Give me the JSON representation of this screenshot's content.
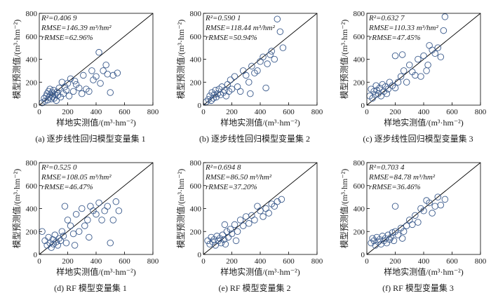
{
  "figure": {
    "marker_color": "#3a5a8c",
    "axis_color": "#000000"
  },
  "chart_data": [
    {
      "type": "scatter",
      "caption": "(a) 逐步线性回归模型变量集 1",
      "xlabel": "样地实测值/(m³·hm⁻²)",
      "ylabel": "模型预测值/(m³·hm⁻²)",
      "xlim": [
        0,
        800
      ],
      "ylim": [
        0,
        800
      ],
      "xticks": [
        0,
        200,
        400,
        600,
        800
      ],
      "yticks": [
        0,
        200,
        400,
        600,
        800
      ],
      "reference_line": "1:1",
      "stats": [
        "R²=0.406 9",
        "RMSE=146.39 m³/hm²",
        "rRMSE=62.96%"
      ],
      "points": [
        [
          20,
          20
        ],
        [
          35,
          60
        ],
        [
          40,
          35
        ],
        [
          50,
          80
        ],
        [
          55,
          100
        ],
        [
          60,
          45
        ],
        [
          65,
          120
        ],
        [
          70,
          70
        ],
        [
          75,
          140
        ],
        [
          80,
          90
        ],
        [
          85,
          55
        ],
        [
          90,
          110
        ],
        [
          95,
          75
        ],
        [
          100,
          130
        ],
        [
          105,
          60
        ],
        [
          110,
          95
        ],
        [
          120,
          40
        ],
        [
          125,
          115
        ],
        [
          130,
          85
        ],
        [
          140,
          150
        ],
        [
          150,
          70
        ],
        [
          160,
          200
        ],
        [
          170,
          100
        ],
        [
          180,
          160
        ],
        [
          190,
          130
        ],
        [
          200,
          190
        ],
        [
          210,
          80
        ],
        [
          220,
          230
        ],
        [
          240,
          120
        ],
        [
          250,
          210
        ],
        [
          260,
          180
        ],
        [
          280,
          150
        ],
        [
          300,
          100
        ],
        [
          310,
          260
        ],
        [
          330,
          140
        ],
        [
          350,
          120
        ],
        [
          370,
          300
        ],
        [
          380,
          220
        ],
        [
          400,
          250
        ],
        [
          420,
          460
        ],
        [
          430,
          190
        ],
        [
          450,
          300
        ],
        [
          470,
          350
        ],
        [
          480,
          270
        ],
        [
          500,
          110
        ],
        [
          520,
          260
        ],
        [
          550,
          280
        ]
      ]
    },
    {
      "type": "scatter",
      "caption": "(b) 逐步线性回归模型变量集 2",
      "xlabel": "样地实测值/(m³·hm⁻²)",
      "ylabel": "模型预测值/(m³·hm⁻²)",
      "xlim": [
        0,
        800
      ],
      "ylim": [
        0,
        800
      ],
      "xticks": [
        0,
        200,
        400,
        600,
        800
      ],
      "yticks": [
        0,
        200,
        400,
        600,
        800
      ],
      "reference_line": "1:1",
      "stats": [
        "R²=0.590 1",
        "RMSE=118.44 m³/hm²",
        "rRMSE=50.94%"
      ],
      "points": [
        [
          20,
          30
        ],
        [
          35,
          50
        ],
        [
          45,
          80
        ],
        [
          55,
          40
        ],
        [
          60,
          110
        ],
        [
          70,
          60
        ],
        [
          75,
          90
        ],
        [
          85,
          130
        ],
        [
          90,
          70
        ],
        [
          100,
          100
        ],
        [
          110,
          140
        ],
        [
          120,
          90
        ],
        [
          130,
          160
        ],
        [
          140,
          110
        ],
        [
          150,
          130
        ],
        [
          160,
          80
        ],
        [
          170,
          180
        ],
        [
          180,
          120
        ],
        [
          190,
          220
        ],
        [
          200,
          140
        ],
        [
          220,
          250
        ],
        [
          240,
          160
        ],
        [
          260,
          120
        ],
        [
          280,
          300
        ],
        [
          300,
          260
        ],
        [
          320,
          200
        ],
        [
          340,
          340
        ],
        [
          360,
          280
        ],
        [
          380,
          300
        ],
        [
          400,
          380
        ],
        [
          420,
          420
        ],
        [
          440,
          150
        ],
        [
          450,
          360
        ],
        [
          470,
          440
        ],
        [
          480,
          470
        ],
        [
          500,
          400
        ],
        [
          520,
          750
        ],
        [
          540,
          640
        ],
        [
          560,
          500
        ],
        [
          330,
          100
        ]
      ]
    },
    {
      "type": "scatter",
      "caption": "(c) 逐步线性回归模型变量集 3",
      "xlabel": "样地实测值/(m³·hm⁻²)",
      "ylabel": "模型预测值/(m³·hm⁻²)",
      "xlim": [
        0,
        800
      ],
      "ylim": [
        0,
        800
      ],
      "xticks": [
        0,
        200,
        400,
        600,
        800
      ],
      "yticks": [
        0,
        200,
        400,
        600,
        800
      ],
      "reference_line": "1:1",
      "stats": [
        "R²=0.632 7",
        "RMSE=110.33 m³/hm²",
        "rRMSE=47.45%"
      ],
      "points": [
        [
          20,
          80
        ],
        [
          30,
          140
        ],
        [
          40,
          60
        ],
        [
          50,
          120
        ],
        [
          60,
          90
        ],
        [
          65,
          170
        ],
        [
          70,
          130
        ],
        [
          80,
          100
        ],
        [
          90,
          150
        ],
        [
          100,
          80
        ],
        [
          110,
          180
        ],
        [
          120,
          120
        ],
        [
          130,
          160
        ],
        [
          140,
          100
        ],
        [
          150,
          140
        ],
        [
          160,
          200
        ],
        [
          180,
          170
        ],
        [
          200,
          150
        ],
        [
          220,
          200
        ],
        [
          240,
          250
        ],
        [
          260,
          300
        ],
        [
          280,
          200
        ],
        [
          300,
          350
        ],
        [
          320,
          290
        ],
        [
          340,
          260
        ],
        [
          360,
          400
        ],
        [
          380,
          250
        ],
        [
          400,
          430
        ],
        [
          420,
          300
        ],
        [
          440,
          520
        ],
        [
          460,
          480
        ],
        [
          480,
          450
        ],
        [
          500,
          500
        ],
        [
          520,
          420
        ],
        [
          540,
          650
        ],
        [
          550,
          770
        ],
        [
          250,
          440
        ],
        [
          200,
          430
        ],
        [
          430,
          350
        ]
      ]
    },
    {
      "type": "scatter",
      "caption": "(d) RF 模型变量集 1",
      "xlabel": "样地实测值/(m³·hm⁻²)",
      "ylabel": "模型预测值/(m³·hm⁻²)",
      "xlim": [
        0,
        800
      ],
      "ylim": [
        0,
        800
      ],
      "xticks": [
        0,
        200,
        400,
        600,
        800
      ],
      "yticks": [
        0,
        200,
        400,
        600,
        800
      ],
      "reference_line": "1:1",
      "stats": [
        "R²=0.525 0",
        "RMSE=108.05 m³/hm²",
        "rRMSE=46.47%"
      ],
      "points": [
        [
          20,
          200
        ],
        [
          40,
          120
        ],
        [
          55,
          80
        ],
        [
          65,
          150
        ],
        [
          75,
          100
        ],
        [
          85,
          60
        ],
        [
          95,
          130
        ],
        [
          100,
          90
        ],
        [
          110,
          170
        ],
        [
          120,
          110
        ],
        [
          130,
          80
        ],
        [
          140,
          140
        ],
        [
          150,
          120
        ],
        [
          160,
          200
        ],
        [
          170,
          160
        ],
        [
          180,
          420
        ],
        [
          190,
          100
        ],
        [
          200,
          300
        ],
        [
          220,
          250
        ],
        [
          240,
          180
        ],
        [
          260,
          350
        ],
        [
          280,
          200
        ],
        [
          300,
          400
        ],
        [
          320,
          250
        ],
        [
          340,
          300
        ],
        [
          360,
          420
        ],
        [
          380,
          380
        ],
        [
          400,
          350
        ],
        [
          420,
          450
        ],
        [
          440,
          300
        ],
        [
          460,
          380
        ],
        [
          480,
          420
        ],
        [
          500,
          100
        ],
        [
          520,
          300
        ],
        [
          540,
          460
        ],
        [
          560,
          380
        ],
        [
          250,
          80
        ],
        [
          350,
          150
        ]
      ]
    },
    {
      "type": "scatter",
      "caption": "(e) RF 模型变量集 2",
      "xlabel": "样地实测值/(m³·hm⁻²)",
      "ylabel": "模型预测值/(m³·hm⁻²)",
      "xlim": [
        0,
        800
      ],
      "ylim": [
        0,
        800
      ],
      "xticks": [
        0,
        200,
        400,
        600,
        800
      ],
      "yticks": [
        0,
        200,
        400,
        600,
        800
      ],
      "reference_line": "1:1",
      "stats": [
        "R²=0.694 8",
        "RMSE=86.50 m³/hm²",
        "rRMSE=37.20%"
      ],
      "points": [
        [
          30,
          120
        ],
        [
          45,
          90
        ],
        [
          55,
          150
        ],
        [
          65,
          110
        ],
        [
          75,
          130
        ],
        [
          85,
          80
        ],
        [
          95,
          160
        ],
        [
          105,
          120
        ],
        [
          115,
          140
        ],
        [
          125,
          100
        ],
        [
          135,
          170
        ],
        [
          145,
          130
        ],
        [
          155,
          90
        ],
        [
          165,
          200
        ],
        [
          175,
          150
        ],
        [
          190,
          220
        ],
        [
          200,
          180
        ],
        [
          220,
          260
        ],
        [
          240,
          200
        ],
        [
          260,
          300
        ],
        [
          280,
          250
        ],
        [
          300,
          330
        ],
        [
          320,
          270
        ],
        [
          340,
          340
        ],
        [
          360,
          300
        ],
        [
          380,
          420
        ],
        [
          400,
          380
        ],
        [
          420,
          330
        ],
        [
          440,
          400
        ],
        [
          460,
          360
        ],
        [
          480,
          440
        ],
        [
          500,
          420
        ],
        [
          520,
          460
        ],
        [
          550,
          480
        ],
        [
          230,
          120
        ],
        [
          150,
          260
        ]
      ]
    },
    {
      "type": "scatter",
      "caption": "(f) RF 模型变量集 3",
      "xlabel": "样地实测值/(m³·hm⁻²)",
      "ylabel": "模型预测值/(m³·hm⁻²)",
      "xlim": [
        0,
        800
      ],
      "ylim": [
        0,
        800
      ],
      "xticks": [
        0,
        200,
        400,
        600,
        800
      ],
      "yticks": [
        0,
        200,
        400,
        600,
        800
      ],
      "reference_line": "1:1",
      "stats": [
        "R²=0.703 4",
        "RMSE=84.78 m³/hm²",
        "rRMSE=36.46%"
      ],
      "points": [
        [
          30,
          100
        ],
        [
          40,
          140
        ],
        [
          50,
          120
        ],
        [
          60,
          80
        ],
        [
          70,
          150
        ],
        [
          80,
          110
        ],
        [
          90,
          130
        ],
        [
          100,
          90
        ],
        [
          110,
          160
        ],
        [
          120,
          120
        ],
        [
          130,
          140
        ],
        [
          140,
          100
        ],
        [
          150,
          170
        ],
        [
          160,
          130
        ],
        [
          170,
          150
        ],
        [
          180,
          190
        ],
        [
          190,
          120
        ],
        [
          200,
          200
        ],
        [
          220,
          170
        ],
        [
          240,
          230
        ],
        [
          260,
          200
        ],
        [
          280,
          250
        ],
        [
          300,
          300
        ],
        [
          320,
          260
        ],
        [
          340,
          340
        ],
        [
          360,
          280
        ],
        [
          380,
          400
        ],
        [
          400,
          380
        ],
        [
          420,
          470
        ],
        [
          440,
          450
        ],
        [
          460,
          360
        ],
        [
          480,
          420
        ],
        [
          500,
          500
        ],
        [
          520,
          430
        ],
        [
          550,
          480
        ],
        [
          250,
          140
        ],
        [
          200,
          420
        ]
      ]
    }
  ]
}
